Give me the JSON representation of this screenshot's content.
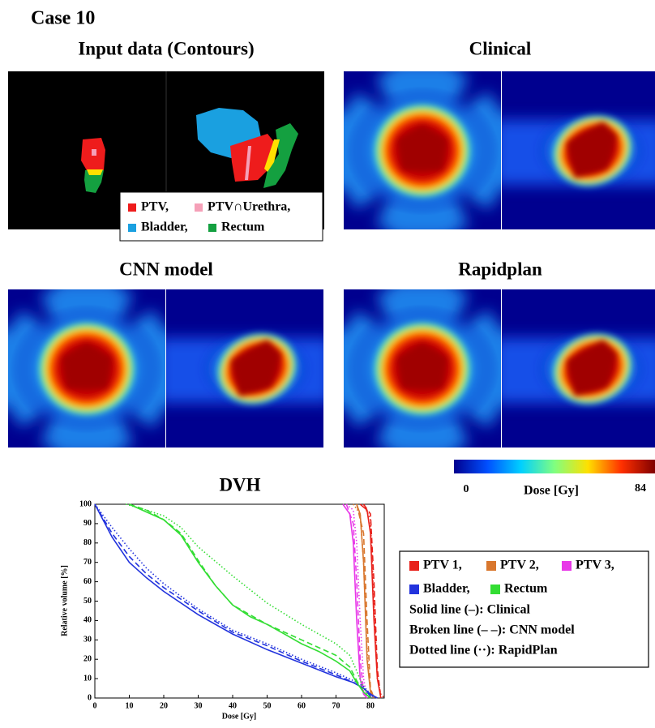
{
  "figure": {
    "case_title": "Case 10",
    "input_title": "Input data (Contours)",
    "clinical_title": "Clinical",
    "cnn_title": "CNN model",
    "rapidplan_title": "Rapidplan",
    "contour_legend": [
      {
        "label": "PTV,",
        "color": "#ee1c1c"
      },
      {
        "label": "PTV∩Urethra,",
        "color": "#f5a0b8"
      },
      {
        "label": "Bladder,",
        "color": "#1aa0e0"
      },
      {
        "label": "Rectum",
        "color": "#14a040"
      }
    ],
    "colorbar": {
      "min": 0,
      "max": 84,
      "label": "Dose [Gy]",
      "colors": [
        "#00008f",
        "#0050ff",
        "#00d0ff",
        "#80ff80",
        "#ffe000",
        "#ff3000",
        "#800000"
      ]
    }
  },
  "chart_data": {
    "type": "line",
    "title": "DVH",
    "x_label": "Dose [Gy]",
    "y_label": "Relative volume [%]",
    "xlim": [
      0,
      84
    ],
    "ylim": [
      0,
      100
    ],
    "xticks": [
      0,
      10,
      20,
      30,
      40,
      50,
      60,
      70,
      80
    ],
    "yticks": [
      0,
      10,
      20,
      30,
      40,
      50,
      60,
      70,
      80,
      90,
      100
    ],
    "line_styles": [
      {
        "label": "Solid line (–): Clinical",
        "style": "solid"
      },
      {
        "label": "Broken line (– –): CNN model",
        "style": "dashed"
      },
      {
        "label": "Dotted line (··): RapidPlan",
        "style": "dotted"
      }
    ],
    "series": [
      {
        "name": "PTV 1,",
        "color": "#e8221c",
        "curves": [
          {
            "style": "solid",
            "x": [
              77,
              79,
              80,
              81,
              82,
              83
            ],
            "values": [
              100,
              97,
              85,
              40,
              10,
              0
            ]
          },
          {
            "style": "dashed",
            "x": [
              78,
              80,
              81,
              82,
              83
            ],
            "values": [
              100,
              95,
              60,
              15,
              0
            ]
          },
          {
            "style": "dotted",
            "x": [
              78,
              80,
              81,
              82,
              83,
              84
            ],
            "values": [
              100,
              92,
              50,
              10,
              2,
              0
            ]
          }
        ]
      },
      {
        "name": "PTV 2,",
        "color": "#d9772e",
        "curves": [
          {
            "style": "solid",
            "x": [
              76,
              77,
              78,
              79,
              80,
              81
            ],
            "values": [
              100,
              95,
              70,
              20,
              3,
              0
            ]
          },
          {
            "style": "dashed",
            "x": [
              76,
              78,
              79,
              80,
              81
            ],
            "values": [
              100,
              85,
              40,
              5,
              0
            ]
          },
          {
            "style": "dotted",
            "x": [
              75,
              77,
              78,
              79,
              80,
              81
            ],
            "values": [
              100,
              95,
              70,
              25,
              3,
              0
            ]
          }
        ]
      },
      {
        "name": "PTV 3,",
        "color": "#e838e8",
        "curves": [
          {
            "style": "solid",
            "x": [
              72,
              74,
              75,
              76,
              77,
              78,
              79
            ],
            "values": [
              100,
              95,
              80,
              40,
              10,
              2,
              0
            ]
          },
          {
            "style": "dashed",
            "x": [
              73,
              75,
              76,
              77,
              78,
              79
            ],
            "values": [
              100,
              90,
              60,
              20,
              3,
              0
            ]
          },
          {
            "style": "dotted",
            "x": [
              73,
              75,
              76,
              77,
              78,
              79
            ],
            "values": [
              100,
              97,
              80,
              40,
              10,
              0
            ]
          }
        ]
      },
      {
        "name": "Bladder,",
        "color": "#2233dd",
        "curves": [
          {
            "style": "solid",
            "x": [
              0,
              5,
              10,
              15,
              20,
              30,
              40,
              50,
              60,
              70,
              75,
              78,
              80,
              82
            ],
            "values": [
              100,
              83,
              70,
              62,
              55,
              43,
              33,
              25,
              18,
              11,
              8,
              5,
              2,
              0
            ]
          },
          {
            "style": "dashed",
            "x": [
              0,
              5,
              10,
              15,
              20,
              30,
              40,
              50,
              60,
              70,
              75,
              78,
              80,
              81
            ],
            "values": [
              100,
              85,
              73,
              64,
              57,
              45,
              34,
              27,
              19,
              12,
              8,
              5,
              1,
              0
            ]
          },
          {
            "style": "dotted",
            "x": [
              0,
              5,
              10,
              15,
              20,
              30,
              40,
              50,
              60,
              70,
              75,
              78,
              80,
              81
            ],
            "values": [
              100,
              88,
              77,
              67,
              59,
              46,
              35,
              28,
              20,
              13,
              9,
              6,
              2,
              0
            ]
          }
        ]
      },
      {
        "name": "Rectum",
        "color": "#33dd33",
        "curves": [
          {
            "style": "solid",
            "x": [
              10,
              15,
              20,
              25,
              30,
              35,
              40,
              45,
              50,
              55,
              60,
              65,
              70,
              74,
              76,
              78,
              80
            ],
            "values": [
              100,
              96,
              92,
              84,
              70,
              58,
              48,
              42,
              38,
              33,
              28,
              24,
              19,
              14,
              8,
              3,
              0
            ]
          },
          {
            "style": "dashed",
            "x": [
              10,
              15,
              20,
              25,
              30,
              35,
              40,
              50,
              60,
              70,
              74,
              76,
              78,
              80
            ],
            "values": [
              100,
              97,
              92,
              85,
              71,
              58,
              48,
              38,
              30,
              22,
              16,
              9,
              3,
              0
            ]
          },
          {
            "style": "dotted",
            "x": [
              9,
              15,
              20,
              25,
              30,
              40,
              50,
              60,
              70,
              74,
              76,
              78,
              80
            ],
            "values": [
              100,
              97,
              94,
              88,
              78,
              63,
              49,
              38,
              28,
              22,
              14,
              5,
              0
            ]
          }
        ]
      }
    ]
  }
}
